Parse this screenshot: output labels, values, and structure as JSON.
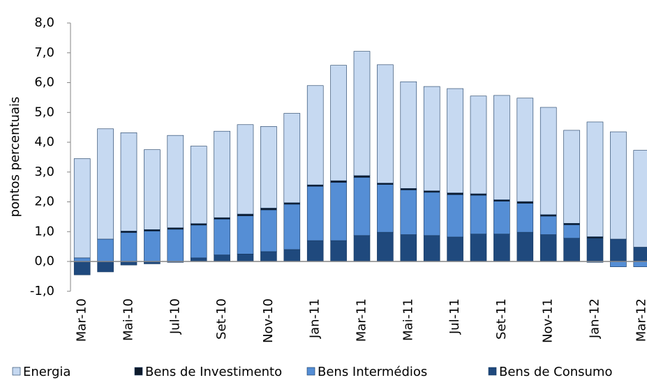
{
  "chart_data": {
    "type": "bar",
    "stacked": true,
    "y_label": "pontos percentuais",
    "categories": [
      "Mar-10",
      null,
      "Mai-10",
      null,
      "Jul-10",
      null,
      "Set-10",
      null,
      "Nov-10",
      null,
      "Jan-11",
      null,
      "Mar-11",
      null,
      "Mai-11",
      null,
      "Jul-11",
      null,
      "Set-11",
      null,
      "Nov-11",
      null,
      "Jan-12",
      null,
      "Mar-12"
    ],
    "series": [
      {
        "name": "Energia",
        "color": "#c6d9f1",
        "values": [
          3.33,
          3.7,
          3.3,
          2.68,
          3.1,
          2.6,
          2.9,
          3.0,
          2.74,
          3.0,
          3.33,
          3.87,
          4.17,
          3.97,
          3.58,
          3.5,
          3.5,
          3.28,
          3.5,
          3.47,
          3.6,
          3.12,
          3.85,
          3.6,
          3.25
        ]
      },
      {
        "name": "Bens de Investimento",
        "color": "#0d1a2b",
        "values": [
          0,
          0,
          0.05,
          0.05,
          0.05,
          0.05,
          0.05,
          0.06,
          0.06,
          0.05,
          0.05,
          0.06,
          0.06,
          0.05,
          0.05,
          0.05,
          0.06,
          0.05,
          0.05,
          0.06,
          0.05,
          0.05,
          0.05,
          0,
          0
        ]
      },
      {
        "name": "Bens Intermédios",
        "color": "#558ed5",
        "values": [
          0.12,
          0.75,
          0.97,
          1.02,
          1.08,
          1.1,
          1.2,
          1.28,
          1.4,
          1.52,
          1.82,
          1.95,
          1.95,
          1.6,
          1.5,
          1.45,
          1.42,
          1.3,
          1.1,
          0.97,
          0.62,
          0.45,
          -0.03,
          -0.18,
          -0.18
        ]
      },
      {
        "name": "Bens de Consumo",
        "color": "#1f497d",
        "values": [
          -0.45,
          -0.35,
          -0.12,
          -0.08,
          -0.03,
          0.12,
          0.22,
          0.25,
          0.33,
          0.4,
          0.7,
          0.7,
          0.87,
          0.98,
          0.9,
          0.87,
          0.82,
          0.92,
          0.92,
          0.98,
          0.9,
          0.78,
          0.78,
          0.75,
          0.48
        ]
      }
    ],
    "ylim": [
      -1,
      8
    ],
    "yticks": [
      {
        "value": -1,
        "label": "-1,0"
      },
      {
        "value": 0,
        "label": "0,0"
      },
      {
        "value": 1,
        "label": "1,0"
      },
      {
        "value": 2,
        "label": "2,0"
      },
      {
        "value": 3,
        "label": "3,0"
      },
      {
        "value": 4,
        "label": "4,0"
      },
      {
        "value": 5,
        "label": "5,0"
      },
      {
        "value": 6,
        "label": "6,0"
      },
      {
        "value": 7,
        "label": "7,0"
      },
      {
        "value": 8,
        "label": "8,0"
      }
    ],
    "legend": "bottom"
  }
}
